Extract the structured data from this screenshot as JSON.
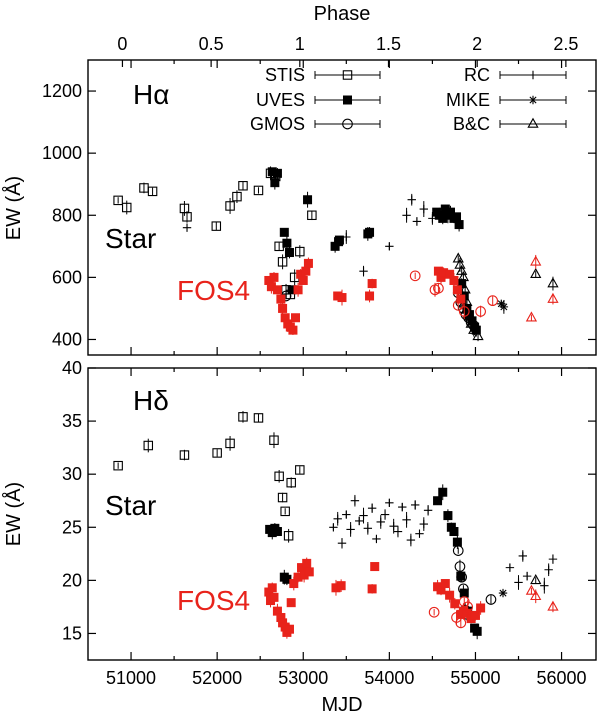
{
  "figure": {
    "top_axis_label": "Phase",
    "bottom_axis_label": "MJD",
    "top_ticks": [
      "0",
      "0.5",
      "1",
      "1.5",
      "2",
      "2.5"
    ],
    "phase_ticks": [
      0,
      0.5,
      1,
      1.5,
      2,
      2.5
    ],
    "x_ticks": [
      "51000",
      "52000",
      "53000",
      "54000",
      "55000",
      "56000"
    ]
  },
  "chart_data": [
    {
      "type": "scatter",
      "title": "Hα",
      "ylabel": "EW (Å)",
      "xlim": [
        50500,
        56400
      ],
      "ylim": [
        350,
        1300
      ],
      "y_ticks": [
        400,
        600,
        800,
        1000,
        1200
      ],
      "y_tick_labels": [
        "400",
        "600",
        "800",
        "1000",
        "1200"
      ],
      "colors": {
        "star": "#000000",
        "fos4": "#e8231b"
      },
      "legend": [
        {
          "name": "STIS",
          "marker": "open-square"
        },
        {
          "name": "UVES",
          "marker": "filled-square"
        },
        {
          "name": "GMOS",
          "marker": "open-circle"
        },
        {
          "name": "RC",
          "marker": "plus"
        },
        {
          "name": "MIKE",
          "marker": "asterisk"
        },
        {
          "name": "B&C",
          "marker": "open-triangle"
        }
      ],
      "annotations": [
        "Star",
        "FOS4"
      ],
      "series": [
        {
          "name": "STIS",
          "object": "Star",
          "marker": "open-square",
          "color": "#000000",
          "x": [
            50850,
            50950,
            51150,
            51250,
            51620,
            51650,
            51990,
            52150,
            52230,
            52300,
            52480,
            52620,
            52680,
            52720,
            52760,
            52800,
            52850,
            52900,
            52960,
            53100
          ],
          "y": [
            848,
            825,
            888,
            877,
            822,
            795,
            765,
            830,
            860,
            895,
            880,
            935,
            925,
            700,
            650,
            560,
            545,
            600,
            683,
            800
          ]
        },
        {
          "name": "UVES",
          "object": "Star",
          "marker": "filled-square",
          "color": "#000000",
          "x": [
            52640,
            52670,
            52700,
            52780,
            52810,
            52840,
            52870,
            53050,
            53370,
            53410,
            53420,
            53750,
            53770,
            54550,
            54580,
            54620,
            54650,
            54680,
            54710,
            54750,
            54780,
            54810,
            54840,
            54870,
            54900,
            54930,
            54960,
            54990,
            55010
          ],
          "y": [
            940,
            905,
            935,
            745,
            710,
            680,
            560,
            850,
            700,
            715,
            720,
            740,
            745,
            810,
            800,
            790,
            820,
            800,
            810,
            790,
            795,
            770,
            580,
            540,
            500,
            480,
            460,
            440,
            430
          ]
        },
        {
          "name": "GMOS",
          "object": "Star",
          "marker": "open-circle",
          "color": "#000000",
          "x": [
            52800,
            54800,
            54830,
            54860,
            54890,
            54920,
            54950,
            54980
          ],
          "y": [
            540,
            550,
            520,
            500,
            480,
            470,
            455,
            445
          ]
        },
        {
          "name": "RC",
          "object": "Star",
          "marker": "plus",
          "color": "#000000",
          "x": [
            51650,
            53500,
            53700,
            54000,
            54200,
            54260,
            54320,
            54400,
            54500
          ],
          "y": [
            760,
            730,
            620,
            700,
            800,
            850,
            780,
            820,
            790
          ]
        },
        {
          "name": "MIKE",
          "object": "Star",
          "marker": "asterisk",
          "color": "#000000",
          "x": [
            55300,
            55330
          ],
          "y": [
            515,
            505
          ]
        },
        {
          "name": "B&C",
          "object": "Star",
          "marker": "open-triangle",
          "color": "#000000",
          "x": [
            54800,
            54820,
            54840,
            54860,
            54880,
            54900,
            54920,
            54950,
            54980,
            55030,
            55700,
            55900
          ],
          "y": [
            660,
            640,
            620,
            600,
            560,
            520,
            480,
            450,
            430,
            410,
            610,
            580
          ]
        },
        {
          "name": "FOS4 UVES",
          "object": "FOS4",
          "marker": "filled-square",
          "color": "#e8231b",
          "x": [
            52600,
            52630,
            52660,
            52700,
            52740,
            52760,
            52790,
            52820,
            52850,
            52880,
            52910,
            52940,
            52970,
            53000,
            53030,
            53060,
            53400,
            53450,
            53770,
            53800,
            54570,
            54600,
            54630,
            54700,
            54750,
            54790,
            54830
          ],
          "y": [
            590,
            570,
            600,
            560,
            530,
            500,
            470,
            450,
            440,
            430,
            470,
            560,
            610,
            590,
            620,
            645,
            540,
            535,
            540,
            580,
            620,
            600,
            615,
            610,
            590,
            560,
            530
          ]
        },
        {
          "name": "FOS4 GMOS",
          "object": "FOS4",
          "marker": "open-circle",
          "color": "#e8231b",
          "x": [
            54300,
            54530,
            54570,
            54800,
            54870,
            55060,
            55200
          ],
          "y": [
            605,
            560,
            565,
            510,
            490,
            490,
            525
          ]
        },
        {
          "name": "FOS4 B&C",
          "object": "FOS4",
          "marker": "open-triangle",
          "color": "#e8231b",
          "x": [
            55650,
            55700,
            55900
          ],
          "y": [
            470,
            650,
            530
          ]
        }
      ]
    },
    {
      "type": "scatter",
      "title": "Hδ",
      "ylabel": "EW (Å)",
      "xlim": [
        50500,
        56400
      ],
      "ylim": [
        12.5,
        40
      ],
      "y_ticks": [
        15,
        20,
        25,
        30,
        35,
        40
      ],
      "y_tick_labels": [
        "15",
        "20",
        "25",
        "30",
        "35",
        "40"
      ],
      "colors": {
        "star": "#000000",
        "fos4": "#e8231b"
      },
      "annotations": [
        "Star",
        "FOS4"
      ],
      "series": [
        {
          "name": "STIS",
          "object": "Star",
          "marker": "open-square",
          "color": "#000000",
          "x": [
            50850,
            51200,
            51620,
            52000,
            52150,
            52300,
            52480,
            52660,
            52720,
            52760,
            52790,
            52830,
            52860,
            52960
          ],
          "y": [
            30.8,
            32.7,
            31.8,
            32.0,
            32.9,
            35.4,
            35.3,
            33.2,
            29.8,
            27.8,
            26.5,
            24.2,
            29.2,
            30.4
          ]
        },
        {
          "name": "UVES",
          "object": "Star",
          "marker": "filled-square",
          "color": "#000000",
          "x": [
            52610,
            52640,
            52670,
            52700,
            52780,
            52810,
            54560,
            54620,
            54680,
            54720,
            54750,
            54790,
            54830,
            54870,
            54910,
            54950,
            54990,
            55020
          ],
          "y": [
            24.8,
            24.5,
            24.9,
            24.6,
            20.3,
            20.1,
            27.5,
            28.3,
            26.1,
            25.0,
            24.6,
            23.6,
            20.4,
            18.8,
            17.1,
            16.6,
            15.5,
            15.2
          ]
        },
        {
          "name": "GMOS",
          "object": "Star",
          "marker": "open-circle",
          "color": "#000000",
          "x": [
            54800,
            54820,
            54840,
            54860,
            54880,
            54900,
            55180
          ],
          "y": [
            22.8,
            21.3,
            20.3,
            19.2,
            17.2,
            16.8,
            18.2
          ]
        },
        {
          "name": "RC",
          "object": "Star",
          "marker": "plus",
          "color": "#000000",
          "x": [
            53350,
            53400,
            53450,
            53500,
            53550,
            53600,
            53650,
            53700,
            53750,
            53800,
            53850,
            53900,
            53950,
            54000,
            54050,
            54100,
            54150,
            54200,
            54250,
            54300,
            54350,
            54400,
            54450,
            55400,
            55500,
            55550,
            55600,
            55800,
            55850,
            55900
          ],
          "y": [
            25.0,
            25.8,
            23.5,
            26.2,
            24.8,
            27.5,
            25.6,
            26.1,
            24.9,
            26.8,
            23.9,
            25.5,
            26.2,
            27.3,
            25.1,
            24.6,
            26.9,
            25.7,
            23.8,
            27.1,
            24.4,
            25.3,
            26.6,
            21.2,
            19.8,
            22.3,
            20.4,
            19.5,
            21.0,
            22.0
          ]
        },
        {
          "name": "MIKE",
          "object": "Star",
          "marker": "asterisk",
          "color": "#000000",
          "x": [
            55320
          ],
          "y": [
            18.8
          ]
        },
        {
          "name": "B&C",
          "object": "Star",
          "marker": "open-triangle",
          "color": "#000000",
          "x": [
            55700
          ],
          "y": [
            20.0
          ]
        },
        {
          "name": "FOS4 UVES",
          "object": "FOS4",
          "marker": "filled-square",
          "color": "#e8231b",
          "x": [
            52600,
            52620,
            52640,
            52660,
            52700,
            52740,
            52760,
            52790,
            52810,
            52840,
            52860,
            52890,
            52940,
            52980,
            53010,
            53040,
            53070,
            53380,
            53440,
            53800,
            53830,
            54560,
            54600,
            54650,
            54700,
            54760,
            54830,
            54860,
            54900,
            54950,
            55000,
            55060
          ],
          "y": [
            18.9,
            18.1,
            19.3,
            18.4,
            17.1,
            16.5,
            16.0,
            15.6,
            15.1,
            15.4,
            17.9,
            19.7,
            20.3,
            21.2,
            20.5,
            21.6,
            20.8,
            19.3,
            19.5,
            19.2,
            21.3,
            19.4,
            19.1,
            19.7,
            18.6,
            17.8,
            16.8,
            17.1,
            16.9,
            16.4,
            16.7,
            17.4
          ]
        },
        {
          "name": "FOS4 GMOS",
          "object": "FOS4",
          "marker": "open-circle",
          "color": "#e8231b",
          "x": [
            54520,
            54780,
            54830,
            54870,
            54910
          ],
          "y": [
            17.0,
            16.5,
            16.0,
            18.0,
            17.5
          ]
        },
        {
          "name": "FOS4 B&C",
          "object": "FOS4",
          "marker": "open-triangle",
          "color": "#e8231b",
          "x": [
            55650,
            55700,
            55900
          ],
          "y": [
            19.0,
            18.5,
            17.5
          ]
        }
      ]
    }
  ]
}
